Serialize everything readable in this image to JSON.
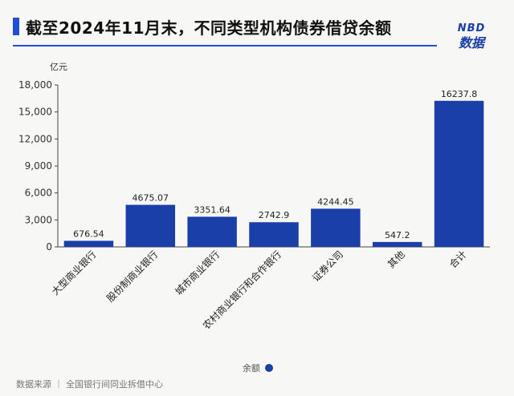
{
  "title": "截至2024年11月末，不同类型机构债券借贷余额",
  "logo": {
    "line1": "NBD",
    "line2": "数据"
  },
  "footer": {
    "source": "数据来源 ｜ 全国银行间同业拆借中心"
  },
  "colors": {
    "accent": "#1f4fd8",
    "bar": "#1a3fa8"
  },
  "chart_data": {
    "type": "bar",
    "ylabel": "亿元",
    "ylim": [
      0,
      18000
    ],
    "yticks": [
      0,
      3000,
      6000,
      9000,
      12000,
      15000,
      18000
    ],
    "ytick_labels": [
      "0",
      "3,000",
      "6,000",
      "9,000",
      "12,000",
      "15,000",
      "18,000"
    ],
    "categories": [
      "大型商业银行",
      "股份制商业银行",
      "城市商业银行",
      "农村商业银行和合作银行",
      "证券公司",
      "其他",
      "合计"
    ],
    "series": [
      {
        "name": "余额",
        "values": [
          676.54,
          4675.07,
          3351.64,
          2742.9,
          4244.45,
          547.2,
          16237.8
        ],
        "labels": [
          "676.54",
          "4675.07",
          "3351.64",
          "2742.9",
          "4244.45",
          "547.2",
          "16237.8"
        ]
      }
    ],
    "grid": false,
    "legend": "bottom-center"
  }
}
